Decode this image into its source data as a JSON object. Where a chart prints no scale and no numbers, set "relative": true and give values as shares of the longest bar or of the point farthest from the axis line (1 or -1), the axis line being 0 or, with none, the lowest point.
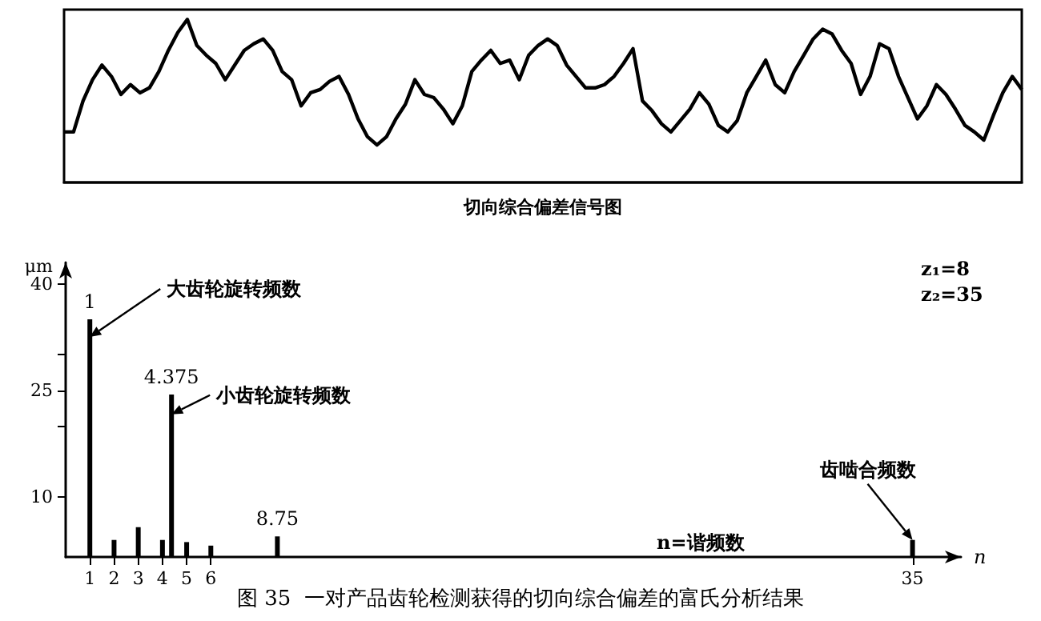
{
  "chart_data": [
    {
      "type": "line",
      "relative": true,
      "xlabel": "切向综合偏差信号图",
      "color": "#000000",
      "categories": [
        null,
        null,
        null,
        null,
        null,
        null,
        null,
        null,
        null,
        null,
        null,
        null,
        null,
        null,
        null,
        null,
        null,
        null,
        null,
        null,
        null,
        null,
        null,
        null,
        null,
        null,
        null,
        null,
        null,
        null,
        null,
        null,
        null,
        null,
        null,
        null,
        null,
        null,
        null,
        null,
        null,
        null,
        null,
        null,
        null,
        null,
        null,
        null,
        null,
        null,
        null,
        null,
        null,
        null,
        null,
        null,
        null,
        null,
        null,
        null,
        null,
        null,
        null,
        null,
        null,
        null,
        null,
        null,
        null,
        null,
        null,
        null,
        null,
        null,
        null,
        null,
        null,
        null,
        null,
        null,
        null,
        null,
        null,
        null,
        null,
        null,
        null,
        null,
        null,
        null,
        null,
        null,
        null,
        null,
        null,
        null,
        null,
        null,
        null,
        null,
        null,
        null
      ],
      "values": [
        0.31,
        0.31,
        0.5,
        0.63,
        0.72,
        0.65,
        0.54,
        0.6,
        0.55,
        0.58,
        0.68,
        0.81,
        0.92,
        1.0,
        0.84,
        0.78,
        0.73,
        0.63,
        0.72,
        0.81,
        0.85,
        0.88,
        0.81,
        0.68,
        0.63,
        0.47,
        0.55,
        0.57,
        0.62,
        0.65,
        0.54,
        0.39,
        0.28,
        0.23,
        0.28,
        0.39,
        0.48,
        0.63,
        0.54,
        0.52,
        0.45,
        0.36,
        0.47,
        0.68,
        0.75,
        0.81,
        0.73,
        0.75,
        0.63,
        0.78,
        0.84,
        0.88,
        0.84,
        0.72,
        0.65,
        0.58,
        0.58,
        0.6,
        0.65,
        0.73,
        0.82,
        0.5,
        0.44,
        0.36,
        0.31,
        0.38,
        0.45,
        0.55,
        0.48,
        0.35,
        0.31,
        0.38,
        0.55,
        0.65,
        0.75,
        0.6,
        0.55,
        0.68,
        0.78,
        0.88,
        0.94,
        0.91,
        0.81,
        0.73,
        0.54,
        0.65,
        0.85,
        0.82,
        0.65,
        0.52,
        0.39,
        0.47,
        0.6,
        0.54,
        0.45,
        0.35,
        0.31,
        0.26,
        0.41,
        0.55,
        0.65,
        0.57
      ]
    },
    {
      "type": "bar",
      "color": "#000000",
      "xlabel": "n",
      "ylabel": "μm",
      "x": [
        1,
        2,
        3,
        4,
        4.375,
        5,
        6,
        8.75,
        35
      ],
      "values": [
        35,
        3.9,
        5.7,
        3.9,
        24.4,
        3.6,
        3.1,
        4.4,
        3.9
      ],
      "xlim": [
        0,
        37
      ],
      "ylim": [
        1.5,
        43
      ],
      "xticks": [
        1,
        2,
        3,
        4,
        5,
        6,
        35
      ],
      "yticks": [
        10,
        {
          "value": 20,
          "label": null
        },
        25,
        {
          "value": 30,
          "label": null
        },
        40
      ],
      "annotations": [
        {
          "text": "1",
          "x": 1,
          "y": 35
        },
        {
          "text": "大齿轮旋转频数",
          "x": 1,
          "y": 32.5
        },
        {
          "text": "4.375",
          "x": 4.375,
          "y": 24.4
        },
        {
          "text": "小齿轮旋转频数",
          "x": 4.375,
          "y": 21.6
        },
        {
          "text": "8.75",
          "x": 8.75,
          "y": 4.4
        },
        {
          "text": "齿啮合频数",
          "x": 35,
          "y": 3.9
        },
        "z₁=8",
        "z₂=35",
        "n=谐频数",
        "图 35  一对产品齿轮检测获得的切向综合偏差的富氏分析结果"
      ]
    }
  ]
}
